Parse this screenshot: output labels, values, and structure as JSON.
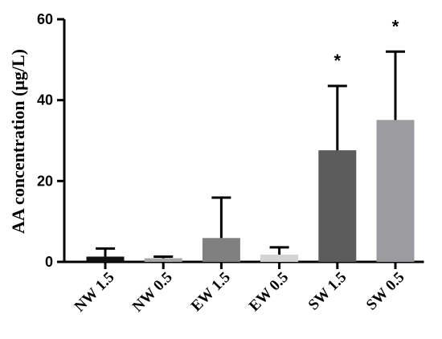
{
  "chart_data": {
    "type": "bar",
    "title": "",
    "xlabel": "",
    "ylabel": "AA concentration (μg/L)",
    "ylim": [
      0,
      60
    ],
    "yticks": [
      0,
      20,
      40,
      60
    ],
    "grid": false,
    "categories": [
      "NW 1.5",
      "NW 0.5",
      "EW 1.5",
      "EW 0.5",
      "SW 1.5",
      "SW 0.5"
    ],
    "values": [
      1.3,
      0.9,
      5.9,
      1.8,
      27.6,
      35.1
    ],
    "error_upper": [
      3.3,
      1.3,
      15.9,
      3.6,
      43.5,
      52.0
    ],
    "bar_colors": [
      "#111111",
      "#a6a6a6",
      "#808080",
      "#d3d3d3",
      "#5c5c5c",
      "#9c9ca0"
    ],
    "annotations": [
      "",
      "",
      "",
      "",
      "*",
      "*"
    ]
  }
}
